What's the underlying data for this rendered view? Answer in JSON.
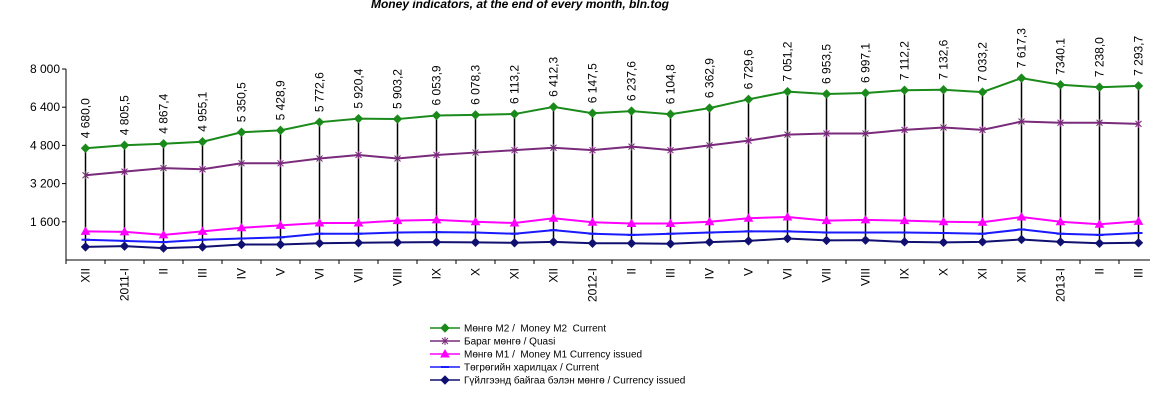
{
  "chart_data": {
    "type": "line",
    "title": "Money indicators, at the end of every month, bln.tog",
    "categories": [
      "XII",
      "2011-I",
      "II",
      "III",
      "IV",
      "V",
      "VI",
      "VII",
      "VIII",
      "IX",
      "X",
      "XI",
      "XII",
      "2012-I",
      "II",
      "III",
      "IV",
      "V",
      "VI",
      "VII",
      "VIII",
      "IX",
      "X",
      "XI",
      "XII",
      "2013-I",
      "II",
      "III"
    ],
    "ylim": [
      0,
      8000
    ],
    "yticks": [
      {
        "value": 1600,
        "label": "1 600"
      },
      {
        "value": 3200,
        "label": "3 200"
      },
      {
        "value": 4800,
        "label": "4 800"
      },
      {
        "value": 6400,
        "label": "6 400"
      },
      {
        "value": 8000,
        "label": "8 000"
      }
    ],
    "grid": false,
    "legend": "bottom",
    "series": [
      {
        "name": "Мөнгө М2 /  Money M2  Current",
        "color": "#1a8a1a",
        "marker": "diamond",
        "values": [
          4680.0,
          4805.5,
          4867.4,
          4955.1,
          5350.5,
          5428.9,
          5772.6,
          5920.4,
          5903.2,
          6053.9,
          6078.3,
          6113.2,
          6412.3,
          6147.5,
          6237.6,
          6104.8,
          6362.9,
          6729.6,
          7051.2,
          6953.5,
          6997.1,
          7112.2,
          7132.6,
          7033.2,
          7617.3,
          7340.1,
          7238.0,
          7293.7
        ],
        "value_labels": [
          "4 680,0",
          "4 805,5",
          "4 867,4",
          "4 955,1",
          "5 350,5",
          "5 428,9",
          "5 772,6",
          "5 920,4",
          "5 903,2",
          "6 053,9",
          "6 078,3",
          "6 113,2",
          "6 412,3",
          "6 147,5",
          "6 237,6",
          "6 104,8",
          "6 362,9",
          "6 729,6",
          "7 051,2",
          "6 953,5",
          "6 997,1",
          "7 112,2",
          "7 132,6",
          "7 033,2",
          "7 617,3",
          "7340.1",
          "7 238,0",
          "7 293,7"
        ]
      },
      {
        "name": "Бараг мөнгө / Quasi",
        "color": "#7a2a7a",
        "marker": "star",
        "values": [
          3550,
          3700,
          3850,
          3800,
          4050,
          4050,
          4250,
          4400,
          4250,
          4400,
          4500,
          4600,
          4700,
          4600,
          4750,
          4600,
          4800,
          5000,
          5250,
          5300,
          5300,
          5450,
          5550,
          5450,
          5800,
          5750,
          5750,
          5700
        ]
      },
      {
        "name": "Мөнгө М1 /  Money M1 Currency issued",
        "color": "#ff00ff",
        "marker": "triangle",
        "values": [
          1200,
          1180,
          1050,
          1200,
          1350,
          1450,
          1550,
          1550,
          1650,
          1680,
          1600,
          1550,
          1750,
          1580,
          1530,
          1530,
          1600,
          1750,
          1800,
          1650,
          1680,
          1650,
          1600,
          1580,
          1800,
          1600,
          1500,
          1620
        ]
      },
      {
        "name": "Төгрөгийн харилцах / Current",
        "color": "#1a1aff",
        "marker": "dash",
        "values": [
          850,
          800,
          750,
          850,
          900,
          950,
          1100,
          1100,
          1150,
          1170,
          1150,
          1100,
          1250,
          1100,
          1050,
          1100,
          1150,
          1200,
          1200,
          1150,
          1150,
          1150,
          1130,
          1100,
          1280,
          1100,
          1050,
          1130
        ]
      },
      {
        "name": "Гүйлгээнд байгаа бэлэн мөнгө / Currency issued",
        "color": "#101070",
        "marker": "diamond",
        "values": [
          550,
          580,
          500,
          550,
          650,
          650,
          700,
          720,
          740,
          750,
          740,
          720,
          760,
          700,
          700,
          680,
          750,
          800,
          900,
          820,
          830,
          760,
          740,
          760,
          860,
          760,
          700,
          720
        ]
      }
    ]
  }
}
